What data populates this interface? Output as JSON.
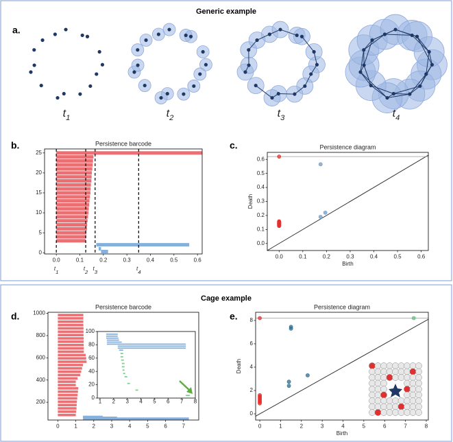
{
  "sections": [
    {
      "title": "Generic example"
    },
    {
      "title": "Cage example"
    }
  ],
  "panels": [
    "a.",
    "b.",
    "c.",
    "d.",
    "e."
  ],
  "stages": [
    {
      "var": "t",
      "sub": "1"
    },
    {
      "var": "t",
      "sub": "2"
    },
    {
      "var": "t",
      "sub": "3"
    },
    {
      "var": "t",
      "sub": "4"
    }
  ],
  "chart_data": [
    {
      "type": "barcode",
      "title": "Persistence barcode",
      "xlim": [
        -0.05,
        0.62
      ],
      "ylim": [
        -0.3,
        26
      ],
      "xticks": [
        {
          "value": 0,
          "label": "0.0"
        },
        0.1,
        0.2,
        0.3,
        0.4,
        0.5,
        0.6
      ],
      "yticks": [
        0,
        5,
        10,
        15,
        20,
        25
      ],
      "series": [
        {
          "color": "#ec7073",
          "y": [
            3,
            4,
            5,
            6,
            7,
            8,
            9,
            10,
            11,
            12,
            13,
            14,
            15,
            16,
            17,
            18,
            19,
            20,
            21,
            22,
            23,
            24,
            25
          ],
          "start": [
            0,
            0,
            0,
            0,
            0,
            0,
            0,
            0,
            0,
            0,
            0,
            0,
            0,
            0,
            0,
            0,
            0,
            0,
            0,
            0,
            0,
            0,
            0
          ],
          "end": [
            0.125,
            0.127,
            0.128,
            0.13,
            0.131,
            0.133,
            0.135,
            0.137,
            0.138,
            0.14,
            0.141,
            0.143,
            0.145,
            0.146,
            0.147,
            0.149,
            0.15,
            0.151,
            0.153,
            0.155,
            0.156,
            0.158,
            0.62
          ]
        },
        {
          "color": "#86b0dc",
          "y": [
            2,
            1,
            0.3
          ],
          "start": [
            0.17,
            0.18,
            0.19
          ],
          "end": [
            0.565,
            0.19,
            0.22
          ]
        }
      ],
      "markers": [
        {
          "value": 0,
          "var": "t",
          "sub": "1"
        },
        {
          "value": 0.125,
          "var": "t",
          "sub": "2"
        },
        {
          "value": 0.165,
          "var": "t",
          "sub": "3"
        },
        {
          "value": 0.35,
          "var": "t",
          "sub": "4"
        }
      ]
    },
    {
      "type": "diagram",
      "title": "Persistence diagram",
      "xlabel": "Birth",
      "ylabel": "Death",
      "xlim": [
        -0.05,
        0.63
      ],
      "ylim": [
        -0.05,
        0.65
      ],
      "xticks": [
        {
          "value": 0,
          "label": "0.0"
        },
        0.1,
        0.2,
        0.3,
        0.4,
        0.5,
        0.6
      ],
      "yticks": [
        {
          "value": 0,
          "label": "0.0"
        },
        0.1,
        0.2,
        0.3,
        0.4,
        0.5,
        0.6
      ],
      "infinity": 0.62,
      "series": [
        {
          "color": "#e8302c",
          "x": [
            0,
            0,
            0,
            0,
            0,
            0,
            0,
            0,
            0,
            0,
            0,
            0,
            0,
            0,
            0,
            0,
            0,
            0,
            0,
            0,
            0,
            0,
            0
          ],
          "y": [
            0.125,
            0.127,
            0.128,
            0.13,
            0.131,
            0.133,
            0.135,
            0.137,
            0.138,
            0.14,
            0.141,
            0.143,
            0.145,
            0.146,
            0.147,
            0.149,
            0.15,
            0.151,
            0.153,
            0.155,
            0.156,
            0.158,
            0.62
          ]
        },
        {
          "color": "#6b9cc9",
          "x": [
            0.175,
            0.175,
            0.195
          ],
          "y": [
            0.565,
            0.19,
            0.22
          ]
        }
      ]
    },
    {
      "type": "barcode",
      "title": "Persistence barcode",
      "xlim": [
        -0.55,
        7.85
      ],
      "ylim": [
        40,
        1010
      ],
      "xticks": [
        0,
        1,
        2,
        3,
        4,
        5,
        6,
        7
      ],
      "yticks": [
        200,
        400,
        600,
        800,
        1000
      ],
      "series": [
        {
          "color": "#ec7073",
          "y": [
            85,
            115,
            145,
            175,
            205,
            235,
            265,
            295,
            325,
            355,
            385,
            415,
            445,
            475,
            505,
            535,
            565,
            595,
            625,
            655,
            685,
            715,
            745,
            775,
            805,
            835,
            865,
            895,
            925,
            955,
            985
          ],
          "start": [
            0,
            0,
            0,
            0,
            0,
            0,
            0,
            0,
            0,
            0,
            0,
            0,
            0,
            0,
            0,
            0,
            0,
            0,
            0,
            0,
            0,
            0,
            0,
            0,
            0,
            0,
            0,
            0,
            0,
            0,
            0
          ],
          "end": [
            1.0,
            1.02,
            1.04,
            1.05,
            1.06,
            1.08,
            1.1,
            1.12,
            1.14,
            1.0,
            1.0,
            1.1,
            1.25,
            1.3,
            1.35,
            1.4,
            1.6,
            1.58,
            1.55,
            1.45,
            1.45,
            1.44,
            1.44,
            1.44,
            1.43,
            1.43,
            1.43,
            1.42,
            1.42,
            1.42,
            1.42
          ]
        },
        {
          "color": "#86b0dc",
          "y": [
            68,
            60,
            52
          ],
          "start": [
            1.4,
            2.4,
            1.4
          ],
          "end": [
            2.5,
            3.3,
            7.3
          ]
        }
      ]
    },
    {
      "type": "barcode",
      "xlim": [
        0.8,
        8
      ],
      "ylim": [
        0,
        100
      ],
      "xticks": [
        1,
        2,
        3,
        4,
        5,
        6,
        7,
        8
      ],
      "yticks": [
        0,
        20,
        40,
        60,
        80,
        100
      ],
      "series": [
        {
          "color": "#86b0dc",
          "y": [
            96,
            93,
            90,
            87,
            84,
            81,
            78,
            75,
            72
          ],
          "start": [
            1.45,
            1.45,
            1.45,
            1.5,
            1.5,
            1.5,
            2.3,
            2.3,
            2.4
          ],
          "end": [
            2.3,
            2.3,
            2.35,
            2.4,
            2.6,
            7.3,
            7.3,
            7.3,
            2.7
          ]
        },
        {
          "color": "#7fcf8f",
          "y": [
            67,
            62,
            57,
            52,
            47,
            42,
            37,
            32,
            22,
            12,
            4
          ],
          "start": [
            2.5,
            2.5,
            2.55,
            2.6,
            2.6,
            2.65,
            2.7,
            2.8,
            3.0,
            3.6,
            7.3
          ],
          "end": [
            2.7,
            2.7,
            2.75,
            2.8,
            2.8,
            2.8,
            2.85,
            3.0,
            3.2,
            3.8,
            7.6
          ]
        }
      ]
    },
    {
      "type": "diagram",
      "title": "Persistence diagram",
      "xlabel": "Birth",
      "ylabel": "Death",
      "xlim": [
        -0.2,
        8.1
      ],
      "ylim": [
        -0.53,
        8.7
      ],
      "xticks": [
        0,
        1,
        2,
        3,
        4,
        5,
        6,
        7,
        8
      ],
      "yticks": [
        0,
        2,
        4,
        6,
        8
      ],
      "infinity": 8.2,
      "series": [
        {
          "color": "#e8302c",
          "x": [
            0,
            0,
            0,
            0,
            0,
            0,
            0,
            0,
            0
          ],
          "y": [
            8.2,
            1.6,
            1.5,
            1.4,
            1.3,
            1.2,
            1.1,
            1.0,
            0.9
          ]
        },
        {
          "color": "#5cc27a",
          "x": [
            7.4
          ],
          "y": [
            8.2
          ]
        },
        {
          "color": "#2e6f8e",
          "x": [
            1.5,
            1.5,
            1.4,
            1.4,
            2.3
          ],
          "y": [
            7.3,
            7.45,
            2.4,
            2.75,
            3.3
          ]
        }
      ]
    }
  ]
}
